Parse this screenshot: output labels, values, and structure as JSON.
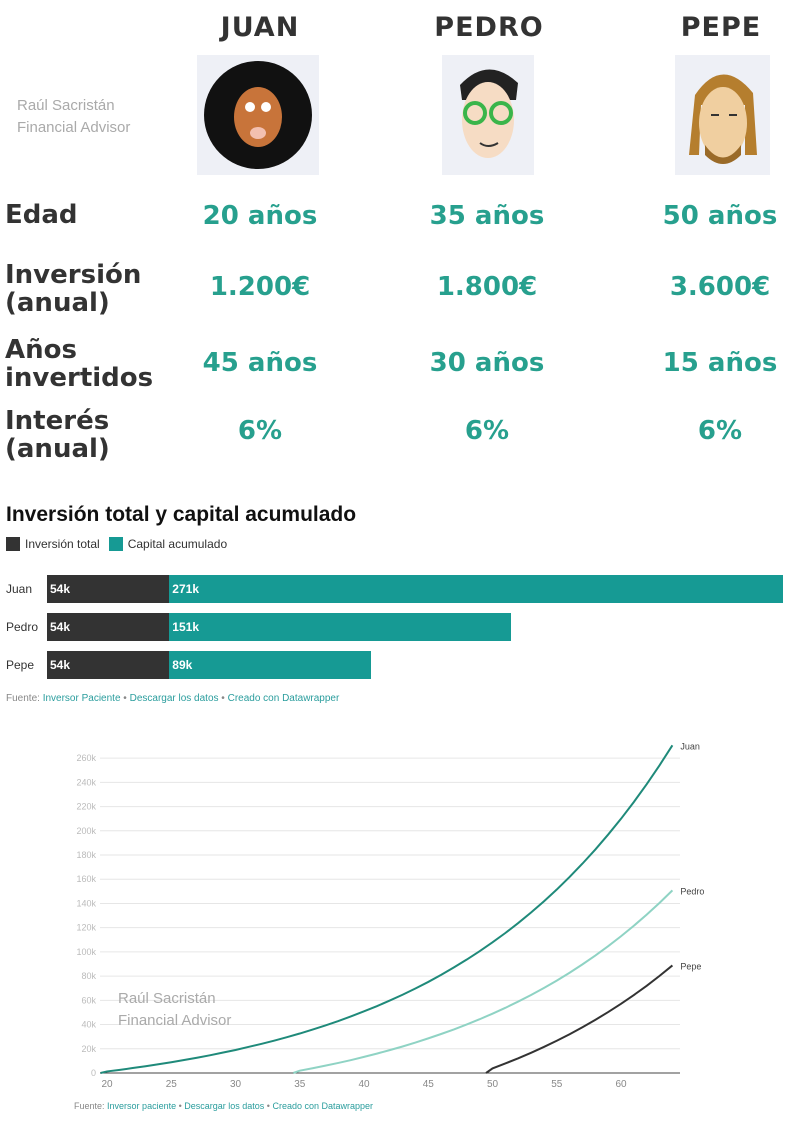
{
  "watermark": {
    "line1": "Raúl Sacristán",
    "line2": "Financial Advisor"
  },
  "people": [
    {
      "name": "JUAN",
      "edad": "20 años",
      "inversion": "1.200€",
      "anos": "45 años",
      "interes": "6%"
    },
    {
      "name": "PEDRO",
      "edad": "35 años",
      "inversion": "1.800€",
      "anos": "30 años",
      "interes": "6%"
    },
    {
      "name": "PEPE",
      "edad": "50 años",
      "inversion": "3.600€",
      "anos": "15 años",
      "interes": "6%"
    }
  ],
  "rows": {
    "edad": "Edad",
    "inversion1": "Inversión",
    "inversion2": "(anual)",
    "anos1": "Años",
    "anos2": "invertidos",
    "interes1": "Interés",
    "interes2": "(anual)"
  },
  "chart_data": [
    {
      "type": "bar",
      "stacked": true,
      "orientation": "horizontal",
      "title": "Inversión total y capital acumulado",
      "legend": [
        "Inversión total",
        "Capital acumulado"
      ],
      "colors": [
        "#333333",
        "#169a94"
      ],
      "categories": [
        "Juan",
        "Pedro",
        "Pepe"
      ],
      "series": [
        {
          "name": "Inversión total",
          "values": [
            54,
            54,
            54
          ],
          "labels": [
            "54k",
            "54k",
            "54k"
          ]
        },
        {
          "name": "Capital acumulado",
          "values": [
            271,
            151,
            89
          ],
          "labels": [
            "271k",
            "151k",
            "89k"
          ]
        }
      ],
      "unit": "k€",
      "footer": {
        "prefix": "Fuente:",
        "source": "Inversor Paciente",
        "download": "Descargar los datos",
        "created": "Creado con Datawrapper"
      }
    },
    {
      "type": "line",
      "xlim": [
        20,
        65
      ],
      "ylim": [
        0,
        260
      ],
      "xticks": [
        "20",
        "25",
        "30",
        "35",
        "40",
        "45",
        "50",
        "55",
        "60"
      ],
      "yticks": [
        "0",
        "20k",
        "40k",
        "60k",
        "80k",
        "100k",
        "120k",
        "140k",
        "160k",
        "180k",
        "200k",
        "220k",
        "240k",
        "260k"
      ],
      "series": [
        {
          "name": "Juan",
          "color": "#1f8a7a",
          "start": 20,
          "values": [
            1.3,
            2.6,
            4.1,
            5.6,
            7.2,
            8.9,
            10.7,
            12.6,
            14.6,
            16.8,
            19.0,
            21.5,
            24.0,
            26.7,
            29.6,
            32.6,
            35.9,
            39.3,
            42.9,
            46.8,
            50.9,
            55.2,
            59.8,
            64.6,
            69.8,
            75.2,
            81.0,
            87.2,
            93.7,
            100.6,
            107.9,
            115.6,
            123.8,
            132.5,
            141.7,
            151.5,
            161.9,
            172.9,
            184.5,
            196.9,
            209.9,
            223.8,
            238.5,
            254.1,
            270.6
          ]
        },
        {
          "name": "Pedro",
          "color": "#8fd3c4",
          "start": 35,
          "values": [
            1.9,
            3.9,
            6.1,
            8.3,
            10.7,
            13.3,
            16.0,
            18.9,
            21.9,
            25.1,
            28.6,
            32.2,
            36.0,
            40.1,
            44.4,
            49.0,
            53.8,
            59.0,
            64.4,
            70.2,
            76.3,
            82.8,
            89.7,
            97.0,
            104.7,
            112.9,
            121.6,
            130.8,
            140.5,
            150.8
          ]
        },
        {
          "name": "Pepe",
          "color": "#333333",
          "start": 50,
          "values": [
            3.8,
            7.9,
            12.1,
            16.7,
            21.5,
            26.6,
            32.0,
            37.8,
            43.9,
            50.3,
            57.1,
            64.4,
            72.0,
            80.2,
            88.8
          ]
        }
      ],
      "footer": {
        "prefix": "Fuente:",
        "source": "Inversor paciente",
        "download": "Descargar los datos",
        "created": "Creado con Datawrapper"
      }
    }
  ]
}
